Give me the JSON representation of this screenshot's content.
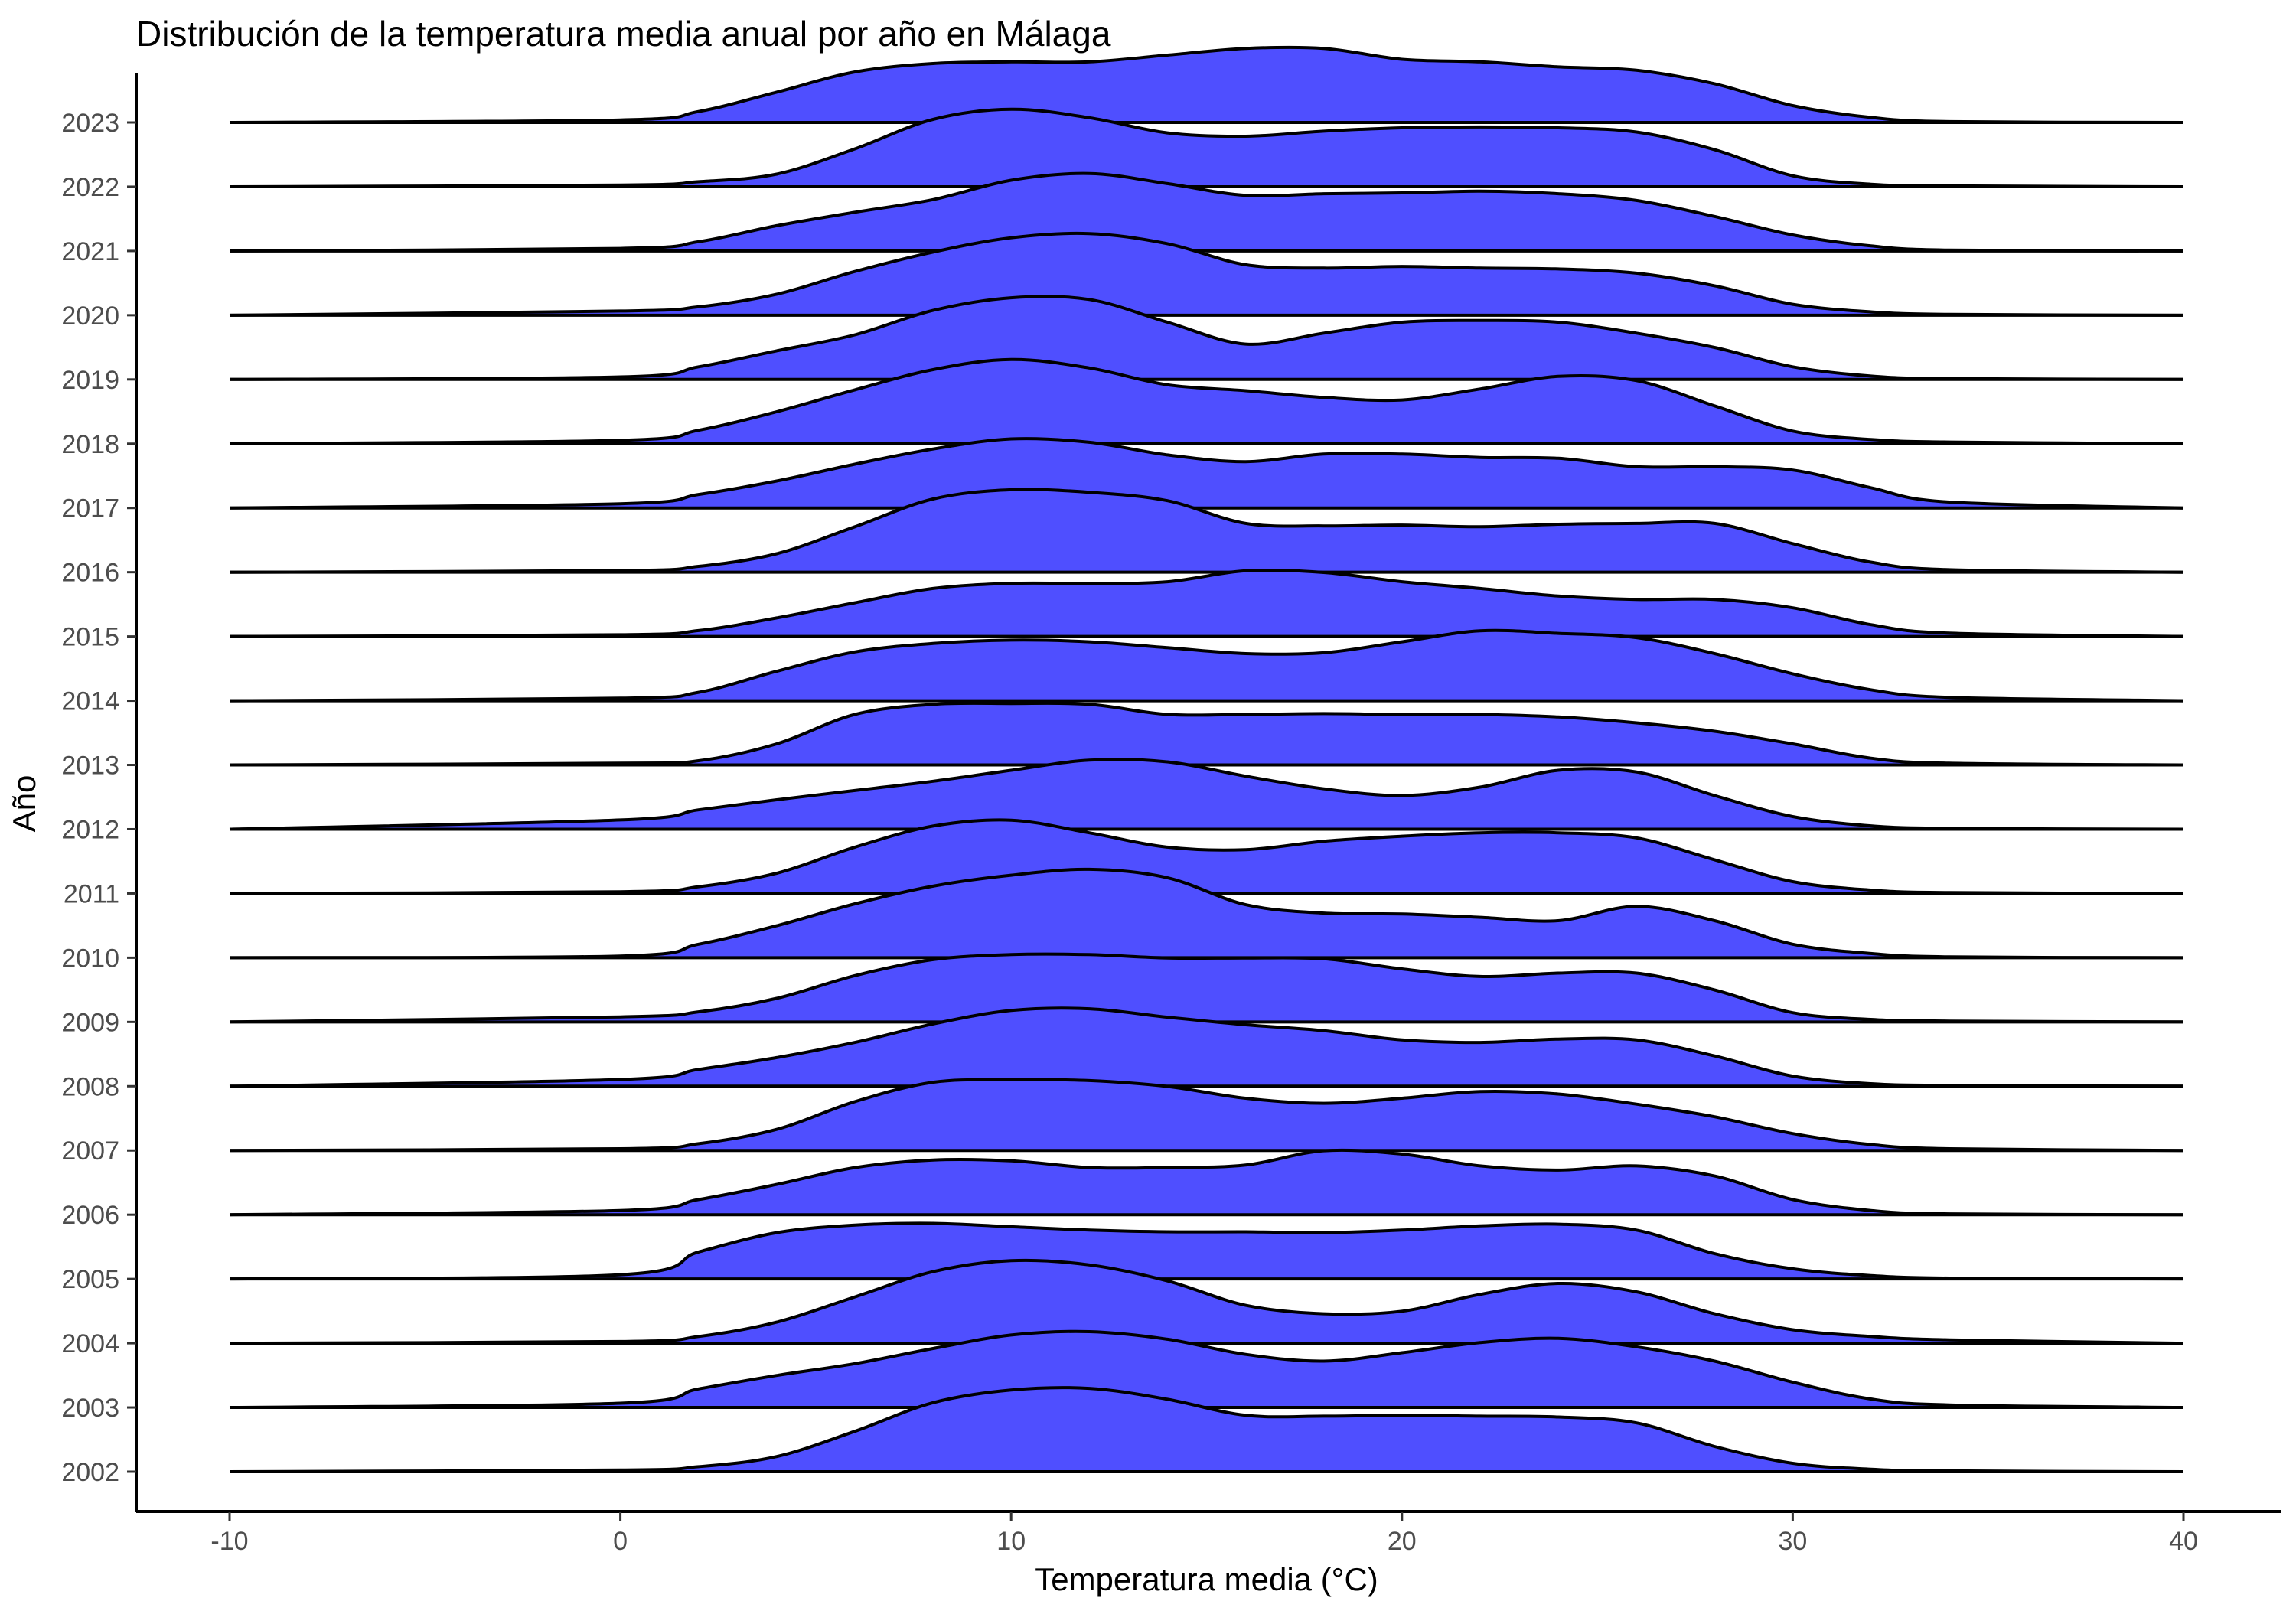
{
  "chart_data": {
    "type": "ridgeline",
    "title": "Distribución de la temperatura media anual por año en Málaga",
    "xlabel": "Temperatura media (°C)",
    "ylabel": "Año",
    "xlim": [
      -10,
      40
    ],
    "x_ticks": [
      -10,
      0,
      10,
      20,
      30,
      40
    ],
    "fill_color": "#4F4FFF",
    "line_color": "#000000",
    "grid": false,
    "legend": "none",
    "ridge_x": [
      -10,
      0,
      2,
      4,
      6,
      8,
      10,
      12,
      14,
      16,
      18,
      20,
      22,
      24,
      26,
      28,
      30,
      32,
      34,
      40
    ],
    "series": [
      {
        "name": "2002",
        "values": [
          0,
          0.02,
          0.06,
          0.18,
          0.48,
          0.82,
          0.97,
          0.99,
          0.86,
          0.67,
          0.66,
          0.67,
          0.66,
          0.65,
          0.58,
          0.3,
          0.1,
          0.03,
          0.01,
          0
        ]
      },
      {
        "name": "2003",
        "values": [
          0,
          0.05,
          0.22,
          0.38,
          0.52,
          0.7,
          0.86,
          0.9,
          0.81,
          0.63,
          0.55,
          0.65,
          0.77,
          0.82,
          0.72,
          0.55,
          0.3,
          0.1,
          0.03,
          0
        ]
      },
      {
        "name": "2004",
        "values": [
          0,
          0.02,
          0.08,
          0.25,
          0.55,
          0.85,
          0.98,
          0.93,
          0.74,
          0.45,
          0.35,
          0.38,
          0.58,
          0.71,
          0.61,
          0.35,
          0.16,
          0.08,
          0.04,
          0
        ]
      },
      {
        "name": "2005",
        "values": [
          0,
          0.05,
          0.32,
          0.55,
          0.64,
          0.66,
          0.62,
          0.58,
          0.56,
          0.56,
          0.55,
          0.58,
          0.63,
          0.65,
          0.58,
          0.3,
          0.12,
          0.04,
          0.01,
          0
        ]
      },
      {
        "name": "2006",
        "values": [
          0,
          0.05,
          0.18,
          0.36,
          0.56,
          0.65,
          0.64,
          0.56,
          0.56,
          0.59,
          0.76,
          0.72,
          0.58,
          0.53,
          0.58,
          0.46,
          0.18,
          0.05,
          0.01,
          0
        ]
      },
      {
        "name": "2007",
        "values": [
          0,
          0.02,
          0.08,
          0.25,
          0.58,
          0.81,
          0.84,
          0.83,
          0.76,
          0.62,
          0.56,
          0.62,
          0.7,
          0.67,
          0.55,
          0.4,
          0.2,
          0.07,
          0.02,
          0
        ]
      },
      {
        "name": "2008",
        "values": [
          0,
          0.08,
          0.2,
          0.34,
          0.52,
          0.74,
          0.9,
          0.92,
          0.82,
          0.73,
          0.66,
          0.55,
          0.52,
          0.56,
          0.55,
          0.36,
          0.12,
          0.03,
          0.01,
          0
        ]
      },
      {
        "name": "2009",
        "values": [
          0,
          0.06,
          0.12,
          0.28,
          0.55,
          0.74,
          0.8,
          0.8,
          0.76,
          0.76,
          0.75,
          0.63,
          0.54,
          0.58,
          0.58,
          0.38,
          0.11,
          0.03,
          0.01,
          0
        ]
      },
      {
        "name": "2010",
        "values": [
          0,
          0.02,
          0.16,
          0.38,
          0.64,
          0.85,
          0.98,
          1.05,
          0.95,
          0.63,
          0.53,
          0.52,
          0.48,
          0.44,
          0.61,
          0.44,
          0.16,
          0.05,
          0.01,
          0
        ]
      },
      {
        "name": "2011",
        "values": [
          0,
          0.02,
          0.08,
          0.24,
          0.55,
          0.8,
          0.87,
          0.72,
          0.55,
          0.52,
          0.62,
          0.68,
          0.72,
          0.72,
          0.66,
          0.4,
          0.14,
          0.04,
          0.01,
          0
        ]
      },
      {
        "name": "2012",
        "values": [
          0,
          0.11,
          0.23,
          0.35,
          0.46,
          0.57,
          0.7,
          0.82,
          0.8,
          0.63,
          0.48,
          0.4,
          0.5,
          0.7,
          0.68,
          0.4,
          0.15,
          0.04,
          0.01,
          0
        ]
      },
      {
        "name": "2013",
        "values": [
          0,
          0.02,
          0.05,
          0.25,
          0.6,
          0.72,
          0.73,
          0.72,
          0.6,
          0.6,
          0.61,
          0.6,
          0.6,
          0.57,
          0.5,
          0.4,
          0.25,
          0.08,
          0.02,
          0
        ]
      },
      {
        "name": "2014",
        "values": [
          0,
          0.03,
          0.1,
          0.35,
          0.58,
          0.68,
          0.72,
          0.7,
          0.63,
          0.56,
          0.57,
          0.7,
          0.83,
          0.8,
          0.75,
          0.56,
          0.32,
          0.13,
          0.04,
          0
        ]
      },
      {
        "name": "2015",
        "values": [
          0,
          0.02,
          0.07,
          0.22,
          0.4,
          0.57,
          0.63,
          0.63,
          0.65,
          0.78,
          0.76,
          0.65,
          0.57,
          0.48,
          0.44,
          0.44,
          0.34,
          0.14,
          0.04,
          0
        ]
      },
      {
        "name": "2016",
        "values": [
          0,
          0.02,
          0.07,
          0.22,
          0.54,
          0.87,
          0.98,
          0.95,
          0.85,
          0.58,
          0.55,
          0.56,
          0.54,
          0.57,
          0.58,
          0.58,
          0.34,
          0.12,
          0.03,
          0
        ]
      },
      {
        "name": "2017",
        "values": [
          0,
          0.05,
          0.16,
          0.32,
          0.52,
          0.7,
          0.82,
          0.78,
          0.63,
          0.55,
          0.64,
          0.64,
          0.6,
          0.59,
          0.49,
          0.49,
          0.45,
          0.24,
          0.07,
          0
        ]
      },
      {
        "name": "2018",
        "values": [
          0,
          0.04,
          0.16,
          0.38,
          0.64,
          0.88,
          1.0,
          0.9,
          0.7,
          0.63,
          0.55,
          0.52,
          0.65,
          0.8,
          0.75,
          0.45,
          0.15,
          0.05,
          0.02,
          0
        ]
      },
      {
        "name": "2019",
        "values": [
          0,
          0.03,
          0.15,
          0.34,
          0.53,
          0.82,
          0.97,
          0.95,
          0.68,
          0.42,
          0.55,
          0.68,
          0.7,
          0.68,
          0.55,
          0.38,
          0.15,
          0.04,
          0.01,
          0
        ]
      },
      {
        "name": "2020",
        "values": [
          0,
          0.05,
          0.1,
          0.25,
          0.52,
          0.75,
          0.92,
          0.97,
          0.85,
          0.6,
          0.56,
          0.58,
          0.56,
          0.55,
          0.5,
          0.35,
          0.13,
          0.04,
          0.01,
          0
        ]
      },
      {
        "name": "2021",
        "values": [
          0,
          0.03,
          0.11,
          0.3,
          0.46,
          0.61,
          0.84,
          0.92,
          0.8,
          0.66,
          0.68,
          0.69,
          0.71,
          0.68,
          0.6,
          0.41,
          0.19,
          0.06,
          0.01,
          0
        ]
      },
      {
        "name": "2022",
        "values": [
          0,
          0.02,
          0.06,
          0.15,
          0.45,
          0.8,
          0.92,
          0.82,
          0.64,
          0.6,
          0.66,
          0.7,
          0.71,
          0.7,
          0.65,
          0.44,
          0.13,
          0.03,
          0.01,
          0
        ]
      },
      {
        "name": "2023",
        "values": [
          0,
          0.03,
          0.13,
          0.36,
          0.6,
          0.7,
          0.72,
          0.72,
          0.8,
          0.88,
          0.88,
          0.75,
          0.72,
          0.66,
          0.62,
          0.46,
          0.2,
          0.06,
          0.01,
          0
        ]
      }
    ]
  }
}
